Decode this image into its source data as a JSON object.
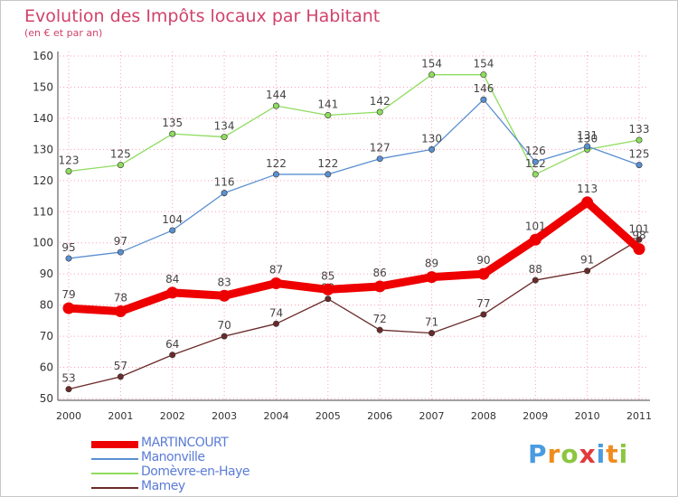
{
  "header": {
    "title": "Evolution des Impôts locaux par Habitant",
    "subtitle": "(en € et par an)"
  },
  "colors": {
    "title": "#d1426b",
    "grid": "#ff9fb5",
    "MARTINCOURT": "#ee0000",
    "Manonville": "#5a8fd0",
    "Domevre": "#8fdc5e",
    "Mamey": "#6b2a2a"
  },
  "legend": [
    {
      "label": "MARTINCOURT",
      "color": "#ee0000"
    },
    {
      "label": "Manonville",
      "color": "#5a8fd0"
    },
    {
      "label": "Domèvre-en-Haye",
      "color": "#8fdc5e"
    },
    {
      "label": "Mamey",
      "color": "#6b2a2a"
    }
  ],
  "logo": {
    "letters": [
      {
        "ch": "P",
        "color": "#4a9be0"
      },
      {
        "ch": "r",
        "color": "#f08c1f"
      },
      {
        "ch": "o",
        "color": "#8cc63f"
      },
      {
        "ch": "x",
        "color": "#e23a3a"
      },
      {
        "ch": "i",
        "color": "#4a9be0"
      },
      {
        "ch": "t",
        "color": "#f08c1f"
      },
      {
        "ch": "i",
        "color": "#8cc63f"
      }
    ]
  },
  "chart_data": {
    "type": "line",
    "title": "Evolution des Impôts locaux par Habitant",
    "subtitle": "(en € et par an)",
    "xlabel": "",
    "ylabel": "",
    "x": [
      "2000",
      "2001",
      "2002",
      "2003",
      "2004",
      "2005",
      "2006",
      "2007",
      "2008",
      "2009",
      "2010",
      "2011"
    ],
    "ylim": [
      50,
      160
    ],
    "yticks": [
      50,
      60,
      70,
      80,
      90,
      100,
      110,
      120,
      130,
      140,
      150,
      160
    ],
    "grid": true,
    "legend_position": "bottom-left",
    "series": [
      {
        "name": "Domèvre-en-Haye",
        "color": "#8fdc5e",
        "values": [
          123,
          125,
          135,
          134,
          144,
          141,
          142,
          154,
          154,
          122,
          130,
          133
        ]
      },
      {
        "name": "Manonville",
        "color": "#5a8fd0",
        "values": [
          95,
          97,
          104,
          116,
          122,
          122,
          127,
          130,
          146,
          126,
          131,
          125
        ]
      },
      {
        "name": "Mamey",
        "color": "#6b2a2a",
        "values": [
          53,
          57,
          64,
          70,
          74,
          82,
          72,
          71,
          77,
          88,
          91,
          101
        ]
      },
      {
        "name": "MARTINCOURT",
        "color": "#ee0000",
        "values": [
          79,
          78,
          84,
          83,
          87,
          85,
          86,
          89,
          90,
          101,
          113,
          98
        ]
      }
    ]
  }
}
